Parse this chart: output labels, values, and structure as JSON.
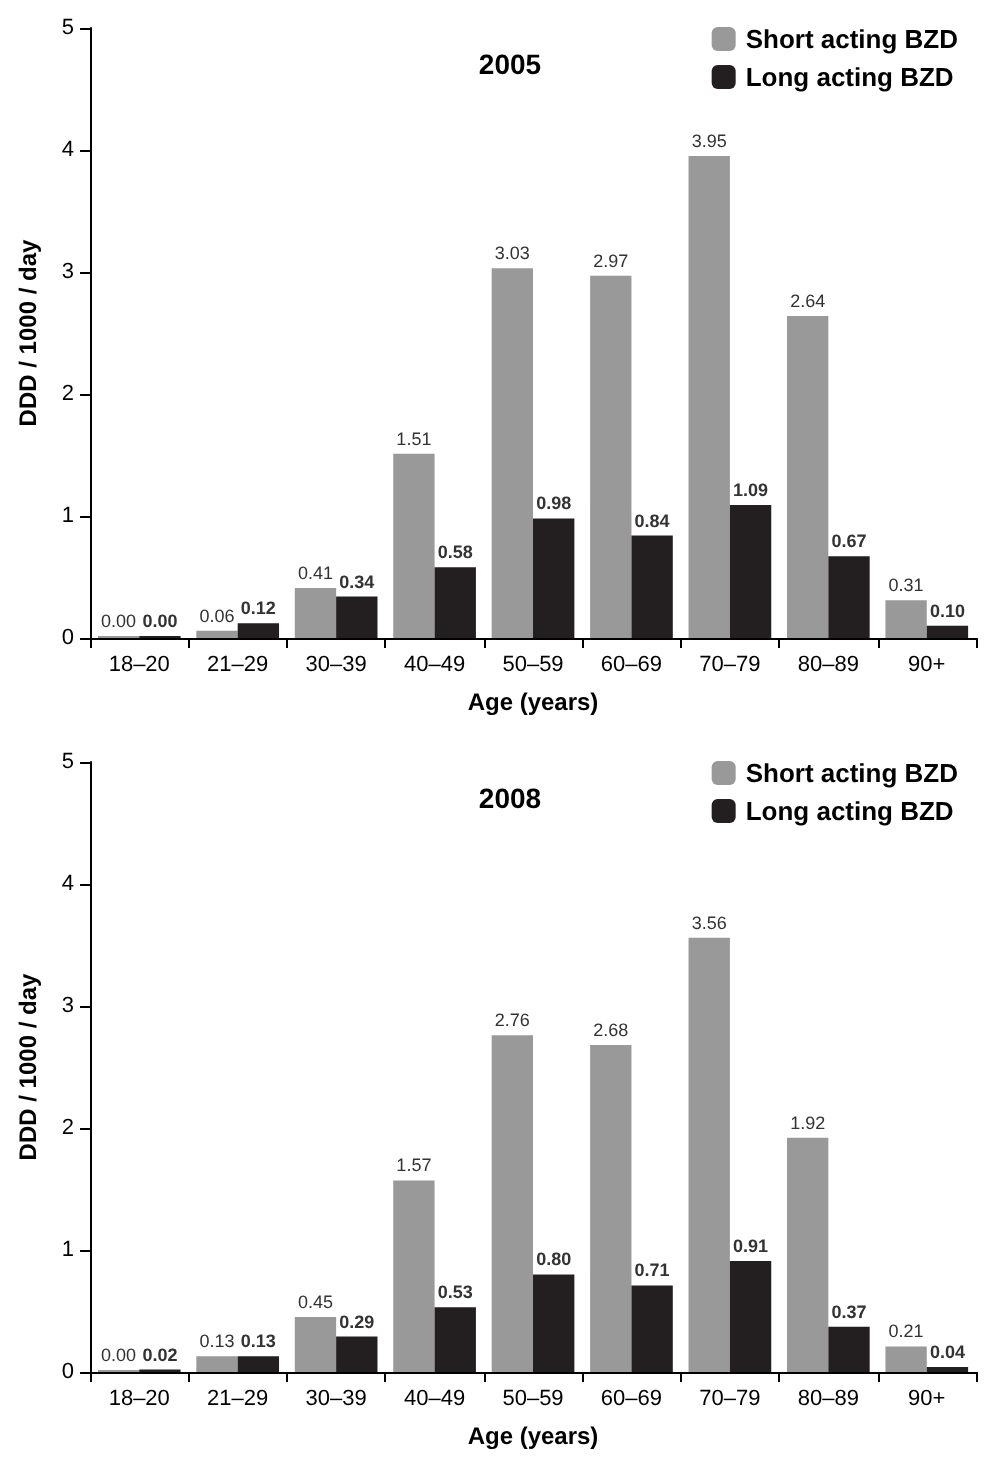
{
  "chart_data": [
    {
      "type": "bar",
      "title": "2005",
      "xlabel": "Age (years)",
      "ylabel": "DDD / 1000 / day",
      "categories": [
        "18–20",
        "21–29",
        "30–39",
        "40–49",
        "50–59",
        "60–69",
        "70–79",
        "80–89",
        "90+"
      ],
      "series": [
        {
          "name": "Short acting BZD",
          "color": "#999999",
          "values": [
            0,
            0.06,
            0.41,
            1.51,
            3.03,
            2.97,
            3.95,
            2.64,
            0.31
          ],
          "value_labels": [
            "0.00",
            "0.06",
            "0.41",
            "1.51",
            "3.03",
            "2.97",
            "3.95",
            "2.64",
            "0.31"
          ]
        },
        {
          "name": "Long acting BZD",
          "color": "#231f20",
          "values": [
            0,
            0.12,
            0.34,
            0.58,
            0.98,
            0.84,
            1.09,
            0.67,
            0.1
          ],
          "value_labels": [
            "0.00",
            "0.12",
            "0.34",
            "0.58",
            "0.98",
            "0.84",
            "1.09",
            "0.67",
            "0.10"
          ]
        }
      ],
      "ylim": [
        0,
        5
      ],
      "yticks": [
        0,
        1,
        2,
        3,
        4,
        5
      ],
      "legend": "top right",
      "grid": false
    },
    {
      "type": "bar",
      "title": "2008",
      "xlabel": "Age (years)",
      "ylabel": "DDD / 1000 / day",
      "categories": [
        "18–20",
        "21–29",
        "30–39",
        "40–49",
        "50–59",
        "60–69",
        "70–79",
        "80–89",
        "90+"
      ],
      "series": [
        {
          "name": "Short acting BZD",
          "color": "#999999",
          "values": [
            0,
            0.13,
            0.45,
            1.57,
            2.76,
            2.68,
            3.56,
            1.92,
            0.21
          ],
          "value_labels": [
            "0.00",
            "0.13",
            "0.45",
            "1.57",
            "2.76",
            "2.68",
            "3.56",
            "1.92",
            "0.21"
          ]
        },
        {
          "name": "Long acting BZD",
          "color": "#231f20",
          "values": [
            0.02,
            0.13,
            0.29,
            0.53,
            0.8,
            0.71,
            0.91,
            0.37,
            0.04
          ],
          "value_labels": [
            "0.02",
            "0.13",
            "0.29",
            "0.53",
            "0.80",
            "0.71",
            "0.91",
            "0.37",
            "0.04"
          ]
        }
      ],
      "ylim": [
        0,
        5
      ],
      "yticks": [
        0,
        1,
        2,
        3,
        4,
        5
      ],
      "legend": "top right",
      "grid": false
    }
  ]
}
